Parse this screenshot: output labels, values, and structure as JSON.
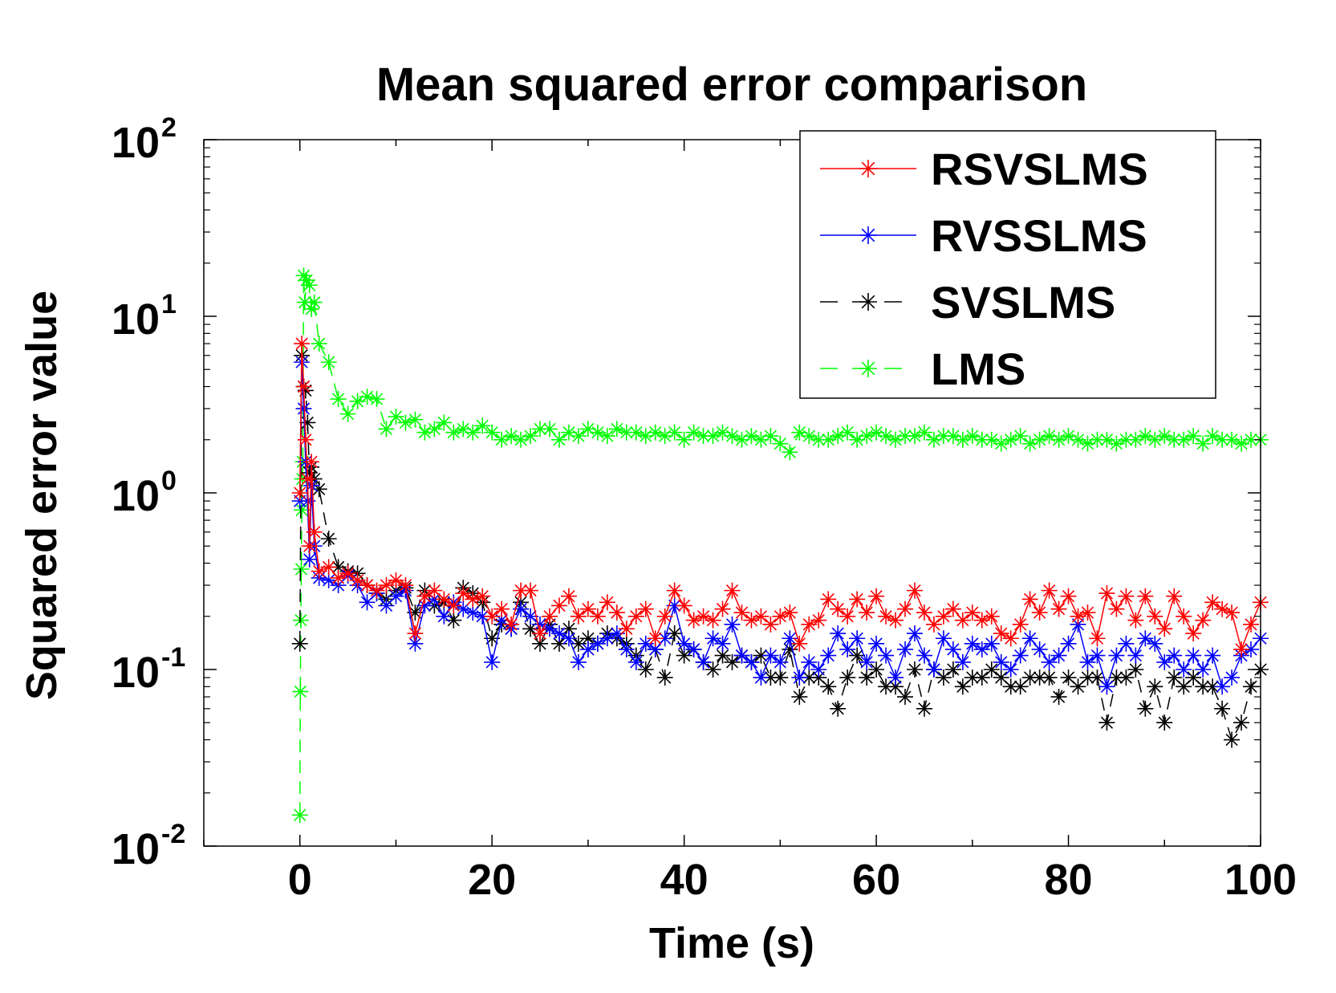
{
  "chart_data": {
    "type": "line",
    "title": "Mean squared error comparison",
    "xlabel": "Time (s)",
    "ylabel": "Squared error value",
    "xlim": [
      -10,
      100
    ],
    "ylim": [
      0.01,
      100
    ],
    "yscale": "log",
    "xticks": [
      0,
      20,
      40,
      60,
      80,
      100
    ],
    "yticks": [
      {
        "base": "10",
        "exp": "-2",
        "value": 0.01
      },
      {
        "base": "10",
        "exp": "-1",
        "value": 0.1
      },
      {
        "base": "10",
        "exp": "0",
        "value": 1
      },
      {
        "base": "10",
        "exp": "1",
        "value": 10
      },
      {
        "base": "10",
        "exp": "2",
        "value": 100
      }
    ],
    "grid": false,
    "legend_position": "top-right",
    "series": [
      {
        "name": "RSVSLMS",
        "color": "#ff0000",
        "linestyle": "solid",
        "marker": "asterisk",
        "x": [
          0,
          0.2,
          0.4,
          0.6,
          0.8,
          1,
          1.2,
          1.5,
          2,
          3,
          4,
          5,
          6,
          7,
          8,
          9,
          10,
          11,
          12,
          13,
          14,
          15,
          16,
          17,
          18,
          19,
          20,
          21,
          22,
          23,
          24,
          25,
          26,
          27,
          28,
          29,
          30,
          31,
          32,
          33,
          34,
          35,
          36,
          37,
          38,
          39,
          40,
          41,
          42,
          43,
          44,
          45,
          46,
          47,
          48,
          49,
          50,
          51,
          52,
          53,
          54,
          55,
          56,
          57,
          58,
          59,
          60,
          61,
          62,
          63,
          64,
          65,
          66,
          67,
          68,
          69,
          70,
          71,
          72,
          73,
          74,
          75,
          76,
          77,
          78,
          79,
          80,
          81,
          82,
          83,
          84,
          85,
          86,
          87,
          88,
          89,
          90,
          91,
          92,
          93,
          94,
          95,
          96,
          97,
          98,
          99,
          100
        ],
        "values": [
          1.0,
          7.0,
          4.0,
          2.0,
          1.2,
          0.5,
          1.5,
          0.6,
          0.36,
          0.38,
          0.33,
          0.35,
          0.32,
          0.3,
          0.28,
          0.3,
          0.32,
          0.3,
          0.16,
          0.26,
          0.28,
          0.25,
          0.23,
          0.27,
          0.25,
          0.26,
          0.2,
          0.22,
          0.18,
          0.28,
          0.28,
          0.16,
          0.2,
          0.23,
          0.26,
          0.2,
          0.22,
          0.2,
          0.24,
          0.21,
          0.17,
          0.2,
          0.22,
          0.15,
          0.2,
          0.28,
          0.23,
          0.19,
          0.2,
          0.19,
          0.22,
          0.28,
          0.21,
          0.19,
          0.2,
          0.18,
          0.2,
          0.21,
          0.14,
          0.18,
          0.19,
          0.25,
          0.22,
          0.2,
          0.25,
          0.21,
          0.26,
          0.2,
          0.19,
          0.22,
          0.28,
          0.21,
          0.18,
          0.2,
          0.22,
          0.19,
          0.21,
          0.19,
          0.2,
          0.16,
          0.15,
          0.18,
          0.25,
          0.21,
          0.28,
          0.22,
          0.26,
          0.2,
          0.21,
          0.15,
          0.27,
          0.22,
          0.26,
          0.19,
          0.26,
          0.2,
          0.17,
          0.26,
          0.2,
          0.16,
          0.19,
          0.24,
          0.22,
          0.21,
          0.13,
          0.18,
          0.24
        ]
      },
      {
        "name": "RVSSLMS",
        "color": "#0000ff",
        "linestyle": "solid",
        "marker": "asterisk",
        "x": [
          0,
          0.2,
          0.4,
          0.6,
          0.8,
          1,
          1.2,
          1.5,
          2,
          3,
          4,
          5,
          6,
          7,
          8,
          9,
          10,
          11,
          12,
          13,
          14,
          15,
          16,
          17,
          18,
          19,
          20,
          21,
          22,
          23,
          24,
          25,
          26,
          27,
          28,
          29,
          30,
          31,
          32,
          33,
          34,
          35,
          36,
          37,
          38,
          39,
          40,
          41,
          42,
          43,
          44,
          45,
          46,
          47,
          48,
          49,
          50,
          51,
          52,
          53,
          54,
          55,
          56,
          57,
          58,
          59,
          60,
          61,
          62,
          63,
          64,
          65,
          66,
          67,
          68,
          69,
          70,
          71,
          72,
          73,
          74,
          75,
          76,
          77,
          78,
          79,
          80,
          81,
          82,
          83,
          84,
          85,
          86,
          87,
          88,
          89,
          90,
          91,
          92,
          93,
          94,
          95,
          96,
          97,
          98,
          99,
          100
        ],
        "values": [
          0.9,
          5.5,
          3.0,
          1.5,
          0.9,
          0.42,
          1.1,
          0.5,
          0.33,
          0.32,
          0.3,
          0.34,
          0.3,
          0.24,
          0.27,
          0.23,
          0.26,
          0.28,
          0.14,
          0.23,
          0.25,
          0.2,
          0.24,
          0.22,
          0.21,
          0.2,
          0.11,
          0.19,
          0.17,
          0.22,
          0.2,
          0.18,
          0.17,
          0.16,
          0.15,
          0.11,
          0.13,
          0.14,
          0.15,
          0.16,
          0.13,
          0.11,
          0.14,
          0.13,
          0.15,
          0.23,
          0.14,
          0.13,
          0.11,
          0.15,
          0.14,
          0.18,
          0.12,
          0.11,
          0.09,
          0.12,
          0.11,
          0.15,
          0.09,
          0.11,
          0.1,
          0.12,
          0.16,
          0.13,
          0.15,
          0.11,
          0.14,
          0.12,
          0.09,
          0.13,
          0.16,
          0.12,
          0.1,
          0.15,
          0.13,
          0.11,
          0.14,
          0.13,
          0.14,
          0.11,
          0.1,
          0.12,
          0.15,
          0.13,
          0.11,
          0.12,
          0.14,
          0.18,
          0.11,
          0.12,
          0.08,
          0.12,
          0.14,
          0.12,
          0.15,
          0.14,
          0.11,
          0.12,
          0.1,
          0.12,
          0.1,
          0.12,
          0.08,
          0.09,
          0.12,
          0.13,
          0.15
        ]
      },
      {
        "name": "SVSLMS",
        "color": "#000000",
        "linestyle": "dashed",
        "marker": "asterisk",
        "x": [
          0,
          0.2,
          0.4,
          0.6,
          0.8,
          1,
          1.2,
          1.5,
          2,
          3,
          4,
          5,
          6,
          7,
          8,
          9,
          10,
          11,
          12,
          13,
          14,
          15,
          16,
          17,
          18,
          19,
          20,
          21,
          22,
          23,
          24,
          25,
          26,
          27,
          28,
          29,
          30,
          31,
          32,
          33,
          34,
          35,
          36,
          37,
          38,
          39,
          40,
          41,
          42,
          43,
          44,
          45,
          46,
          47,
          48,
          49,
          50,
          51,
          52,
          53,
          54,
          55,
          56,
          57,
          58,
          59,
          60,
          61,
          62,
          63,
          64,
          65,
          66,
          67,
          68,
          69,
          70,
          71,
          72,
          73,
          74,
          75,
          76,
          77,
          78,
          79,
          80,
          81,
          82,
          83,
          84,
          85,
          86,
          87,
          88,
          89,
          90,
          91,
          92,
          93,
          94,
          95,
          96,
          97,
          98,
          99,
          100
        ],
        "values": [
          0.14,
          6.0,
          4.0,
          3.8,
          2.5,
          1.3,
          1.4,
          1.2,
          1.05,
          0.55,
          0.38,
          0.36,
          0.35,
          0.3,
          0.27,
          0.25,
          0.28,
          0.29,
          0.21,
          0.28,
          0.23,
          0.24,
          0.19,
          0.29,
          0.27,
          0.24,
          0.15,
          0.18,
          0.17,
          0.24,
          0.17,
          0.14,
          0.18,
          0.14,
          0.17,
          0.14,
          0.15,
          0.14,
          0.16,
          0.15,
          0.14,
          0.12,
          0.1,
          0.13,
          0.09,
          0.16,
          0.12,
          0.13,
          0.11,
          0.1,
          0.12,
          0.11,
          0.12,
          0.11,
          0.12,
          0.09,
          0.09,
          0.13,
          0.07,
          0.09,
          0.09,
          0.08,
          0.06,
          0.09,
          0.12,
          0.09,
          0.1,
          0.08,
          0.08,
          0.07,
          0.1,
          0.06,
          0.1,
          0.09,
          0.1,
          0.08,
          0.09,
          0.09,
          0.1,
          0.09,
          0.08,
          0.08,
          0.09,
          0.09,
          0.09,
          0.07,
          0.09,
          0.08,
          0.09,
          0.09,
          0.05,
          0.09,
          0.09,
          0.1,
          0.06,
          0.08,
          0.05,
          0.09,
          0.08,
          0.09,
          0.08,
          0.08,
          0.06,
          0.04,
          0.05,
          0.08,
          0.1
        ]
      },
      {
        "name": "LMS",
        "color": "#00ff00",
        "linestyle": "dashed",
        "marker": "asterisk",
        "x": [
          0,
          0.05,
          0.1,
          0.15,
          0.2,
          0.25,
          0.3,
          0.4,
          0.5,
          0.7,
          1,
          1.2,
          1.5,
          2,
          3,
          4,
          5,
          6,
          7,
          8,
          9,
          10,
          11,
          12,
          13,
          14,
          15,
          16,
          17,
          18,
          19,
          20,
          21,
          22,
          23,
          24,
          25,
          26,
          27,
          28,
          29,
          30,
          31,
          32,
          33,
          34,
          35,
          36,
          37,
          38,
          39,
          40,
          41,
          42,
          43,
          44,
          45,
          46,
          47,
          48,
          49,
          50,
          51,
          52,
          53,
          54,
          55,
          56,
          57,
          58,
          59,
          60,
          61,
          62,
          63,
          64,
          65,
          66,
          67,
          68,
          69,
          70,
          71,
          72,
          73,
          74,
          75,
          76,
          77,
          78,
          79,
          80,
          81,
          82,
          83,
          84,
          85,
          86,
          87,
          88,
          89,
          90,
          91,
          92,
          93,
          94,
          95,
          96,
          97,
          98,
          99,
          100
        ],
        "values": [
          0.015,
          0.075,
          0.19,
          0.37,
          0.8,
          1.2,
          1.5,
          17.0,
          12.0,
          16.0,
          15.0,
          11.0,
          12.0,
          7.0,
          5.5,
          3.4,
          2.8,
          3.3,
          3.5,
          3.4,
          2.3,
          2.7,
          2.5,
          2.6,
          2.2,
          2.3,
          2.5,
          2.2,
          2.3,
          2.2,
          2.4,
          2.2,
          2.0,
          2.1,
          2.0,
          2.1,
          2.3,
          2.3,
          2.0,
          2.2,
          2.1,
          2.3,
          2.2,
          2.1,
          2.3,
          2.2,
          2.2,
          2.1,
          2.2,
          2.1,
          2.2,
          2.0,
          2.2,
          2.1,
          2.1,
          2.2,
          2.1,
          2.0,
          2.1,
          2.0,
          2.1,
          1.9,
          1.7,
          2.2,
          2.1,
          2.0,
          2.0,
          2.1,
          2.2,
          2.0,
          2.1,
          2.2,
          2.1,
          2.0,
          2.1,
          2.1,
          2.2,
          2.0,
          2.1,
          2.1,
          2.0,
          2.1,
          2.0,
          2.0,
          1.9,
          2.0,
          2.1,
          1.9,
          2.0,
          2.1,
          2.0,
          2.1,
          2.0,
          1.9,
          2.0,
          2.0,
          1.9,
          2.0,
          2.0,
          2.1,
          2.0,
          2.1,
          2.0,
          2.0,
          2.1,
          1.9,
          2.1,
          2.0,
          2.0,
          1.9,
          2.0,
          2.0
        ]
      }
    ]
  }
}
